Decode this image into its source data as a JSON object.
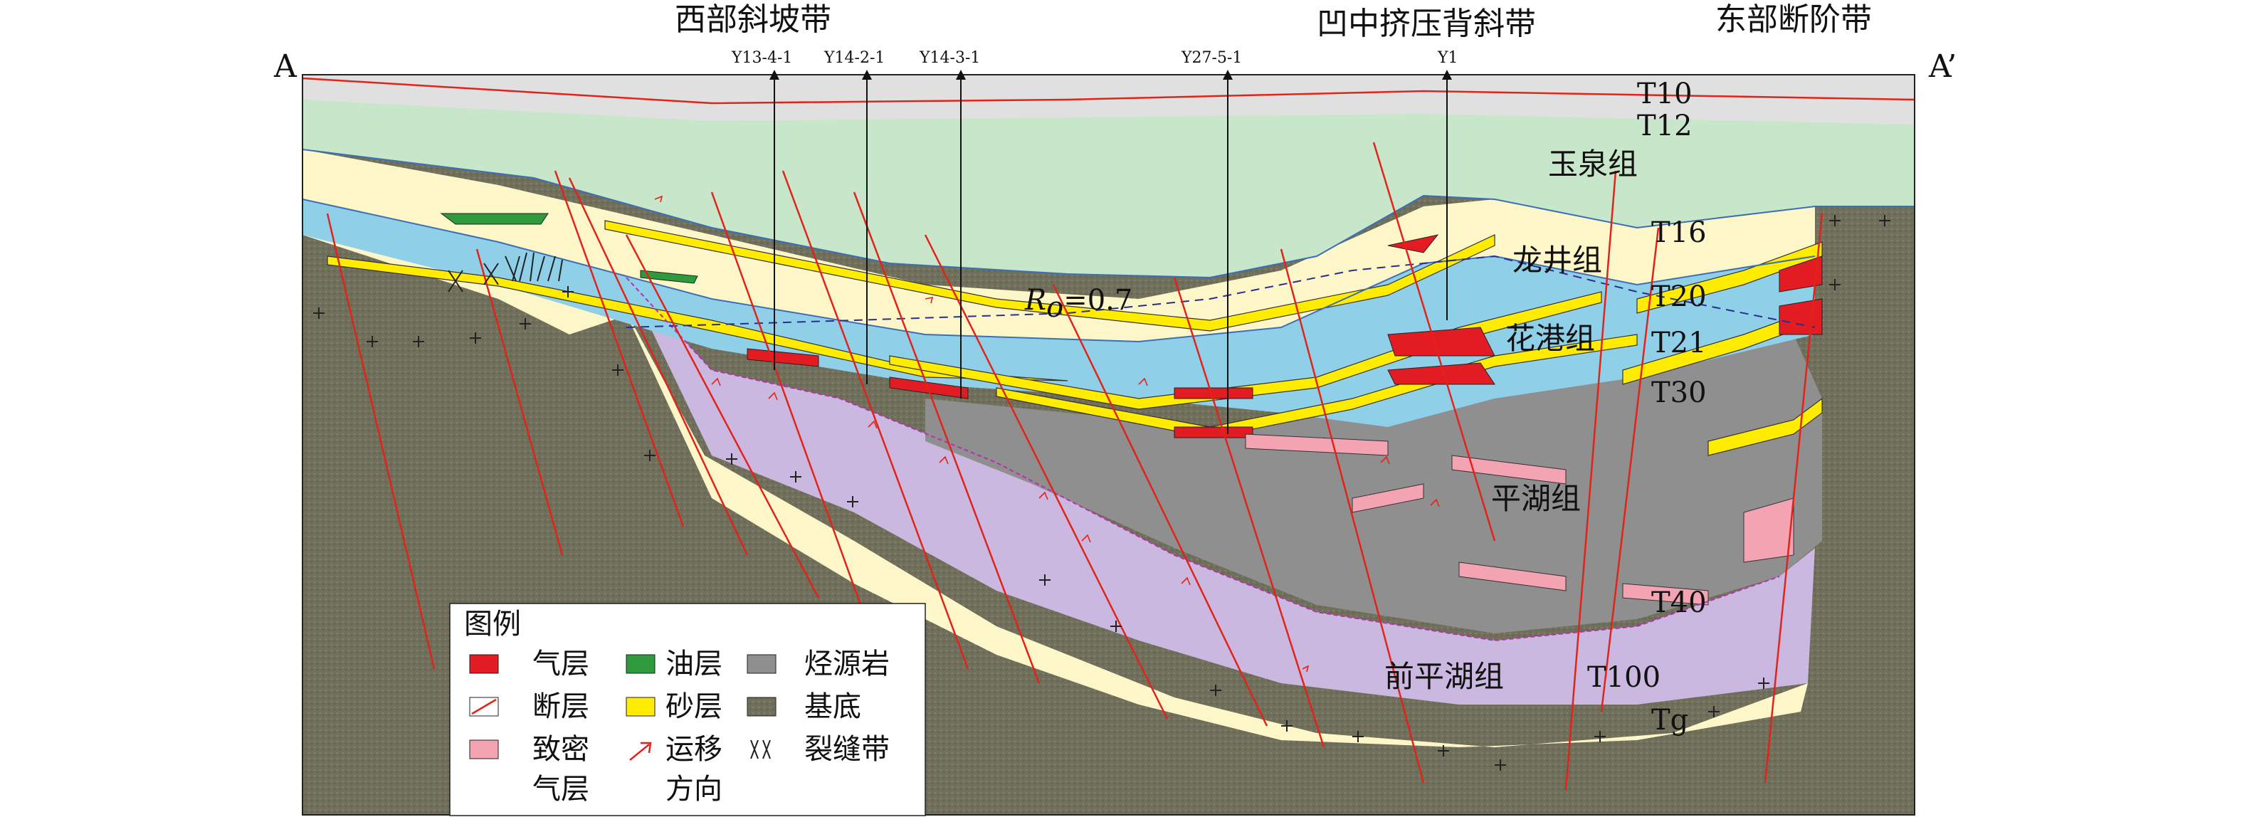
{
  "section": {
    "left_label": "A",
    "right_label": "A’"
  },
  "zones": [
    "西部斜坡带",
    "凹中挤压背斜带",
    "东部断阶带"
  ],
  "wells": [
    "Y13-4-1",
    "Y14-2-1",
    "Y14-3-1",
    "Y27-5-1",
    "Y1"
  ],
  "horizons": [
    "T10",
    "T12",
    "T16",
    "T20",
    "T21",
    "T30",
    "T40",
    "T100",
    "Tg"
  ],
  "formations": [
    "玉泉组",
    "龙井组",
    "花港组",
    "平湖组",
    "前平湖组"
  ],
  "ro_label": {
    "main": "R",
    "sub": "o",
    "value": "=0.7"
  },
  "legend": {
    "title": "图例",
    "items": [
      {
        "label": "气层",
        "swatch": "gas"
      },
      {
        "label": "油层",
        "swatch": "oil"
      },
      {
        "label": "烃源岩",
        "swatch": "source"
      },
      {
        "label": "断层",
        "swatch": "fault"
      },
      {
        "label": "砂层",
        "swatch": "sand"
      },
      {
        "label": "基底",
        "swatch": "basement"
      },
      {
        "label": "致密",
        "label2": "气层",
        "swatch": "tight"
      },
      {
        "label": "运移",
        "label2": "方向",
        "swatch": "migration"
      },
      {
        "label": "裂缝带",
        "swatch": "fracture"
      }
    ]
  },
  "colors": {
    "gas": "#e31b23",
    "oil": "#2e9a3c",
    "sand": "#ffec00",
    "source": "#8f8f8f",
    "basement": "#6e6e5a",
    "tight": "#f4a3b3",
    "fault": "#e2231a",
    "yuquan": "#c8e6c9",
    "longjing": "#fdf6c9",
    "huagang": "#8fd0e8",
    "qianpinghu": "#cbb8e0",
    "top": "#e0e0e0"
  }
}
